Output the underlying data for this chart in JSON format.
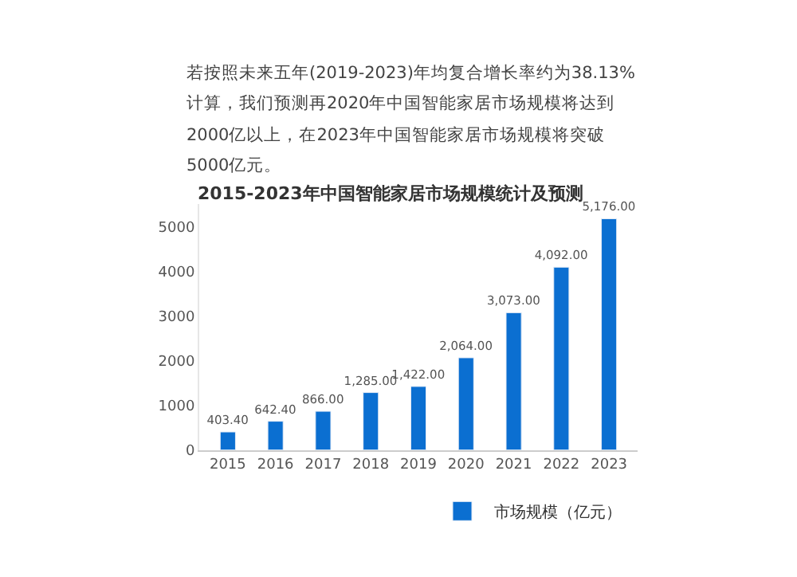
{
  "chart_data": {
    "type": "bar",
    "title": "2015-2023年中国智能家居市场规模统计及预测",
    "annotations": [
      "若按照未来五年(2019-2023)年均复合增长率约为38.13%",
      "计算，我们预测再2020年中国智能家居市场规模将达到",
      "2000亿以上，在2023年中国智能家居市场规模将突破",
      "5000亿元。"
    ],
    "categories": [
      "2015",
      "2016",
      "2017",
      "2018",
      "2019",
      "2020",
      "2021",
      "2022",
      "2023"
    ],
    "series": [
      {
        "name": "市场规模（亿元）",
        "color": "#0b6fd1",
        "values": [
          403.4,
          642.4,
          866.0,
          1285.0,
          1422.0,
          2064.0,
          3073.0,
          4092.0,
          5176.0
        ],
        "value_labels": [
          "403.40",
          "642.40",
          "866.00",
          "1,285.00",
          "1,422.00",
          "2,064.00",
          "3,073.00",
          "4,092.00",
          "5,176.00"
        ]
      }
    ],
    "ylim": [
      0,
      5500
    ],
    "yticks": [
      0,
      1000,
      2000,
      3000,
      4000,
      5000
    ],
    "legend": "bottom"
  }
}
